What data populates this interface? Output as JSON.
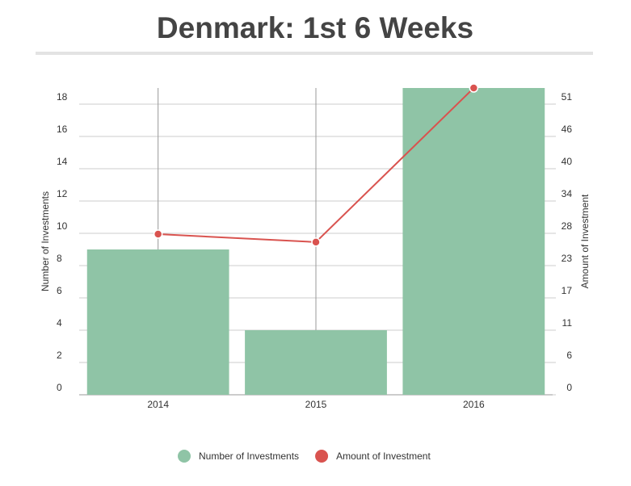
{
  "chart_data": {
    "type": "bar-line",
    "title": "Denmark: 1st 6 Weeks",
    "categories": [
      "2014",
      "2015",
      "2016"
    ],
    "series": [
      {
        "name": "Number of Investments",
        "type": "bar",
        "color": "#8fc4a6",
        "values": [
          9,
          4,
          19
        ]
      },
      {
        "name": "Amount of Investment",
        "type": "line",
        "axis": "y2",
        "color": "#d9534f",
        "values": [
          28.3,
          26.9,
          54.05
        ]
      }
    ],
    "ylabel": "Number of Investments",
    "y2label": "Amount of Investment",
    "ylim": [
      0,
      19
    ],
    "yticks": [
      0,
      2,
      4,
      6,
      8,
      10,
      12,
      14,
      16,
      18
    ],
    "y2lim": [
      0,
      54.05
    ],
    "y2ticks": [
      0,
      {
        "value": 5.69,
        "label": "6"
      },
      {
        "value": 11.38,
        "label": "11"
      },
      {
        "value": 17.07,
        "label": "17"
      },
      {
        "value": 22.76,
        "label": "23"
      },
      {
        "value": 28.45,
        "label": "28"
      },
      {
        "value": 34.14,
        "label": "34"
      },
      {
        "value": 39.83,
        "label": "40"
      },
      {
        "value": 45.52,
        "label": "46"
      },
      {
        "value": 51.21,
        "label": "51"
      }
    ],
    "grid": true
  }
}
